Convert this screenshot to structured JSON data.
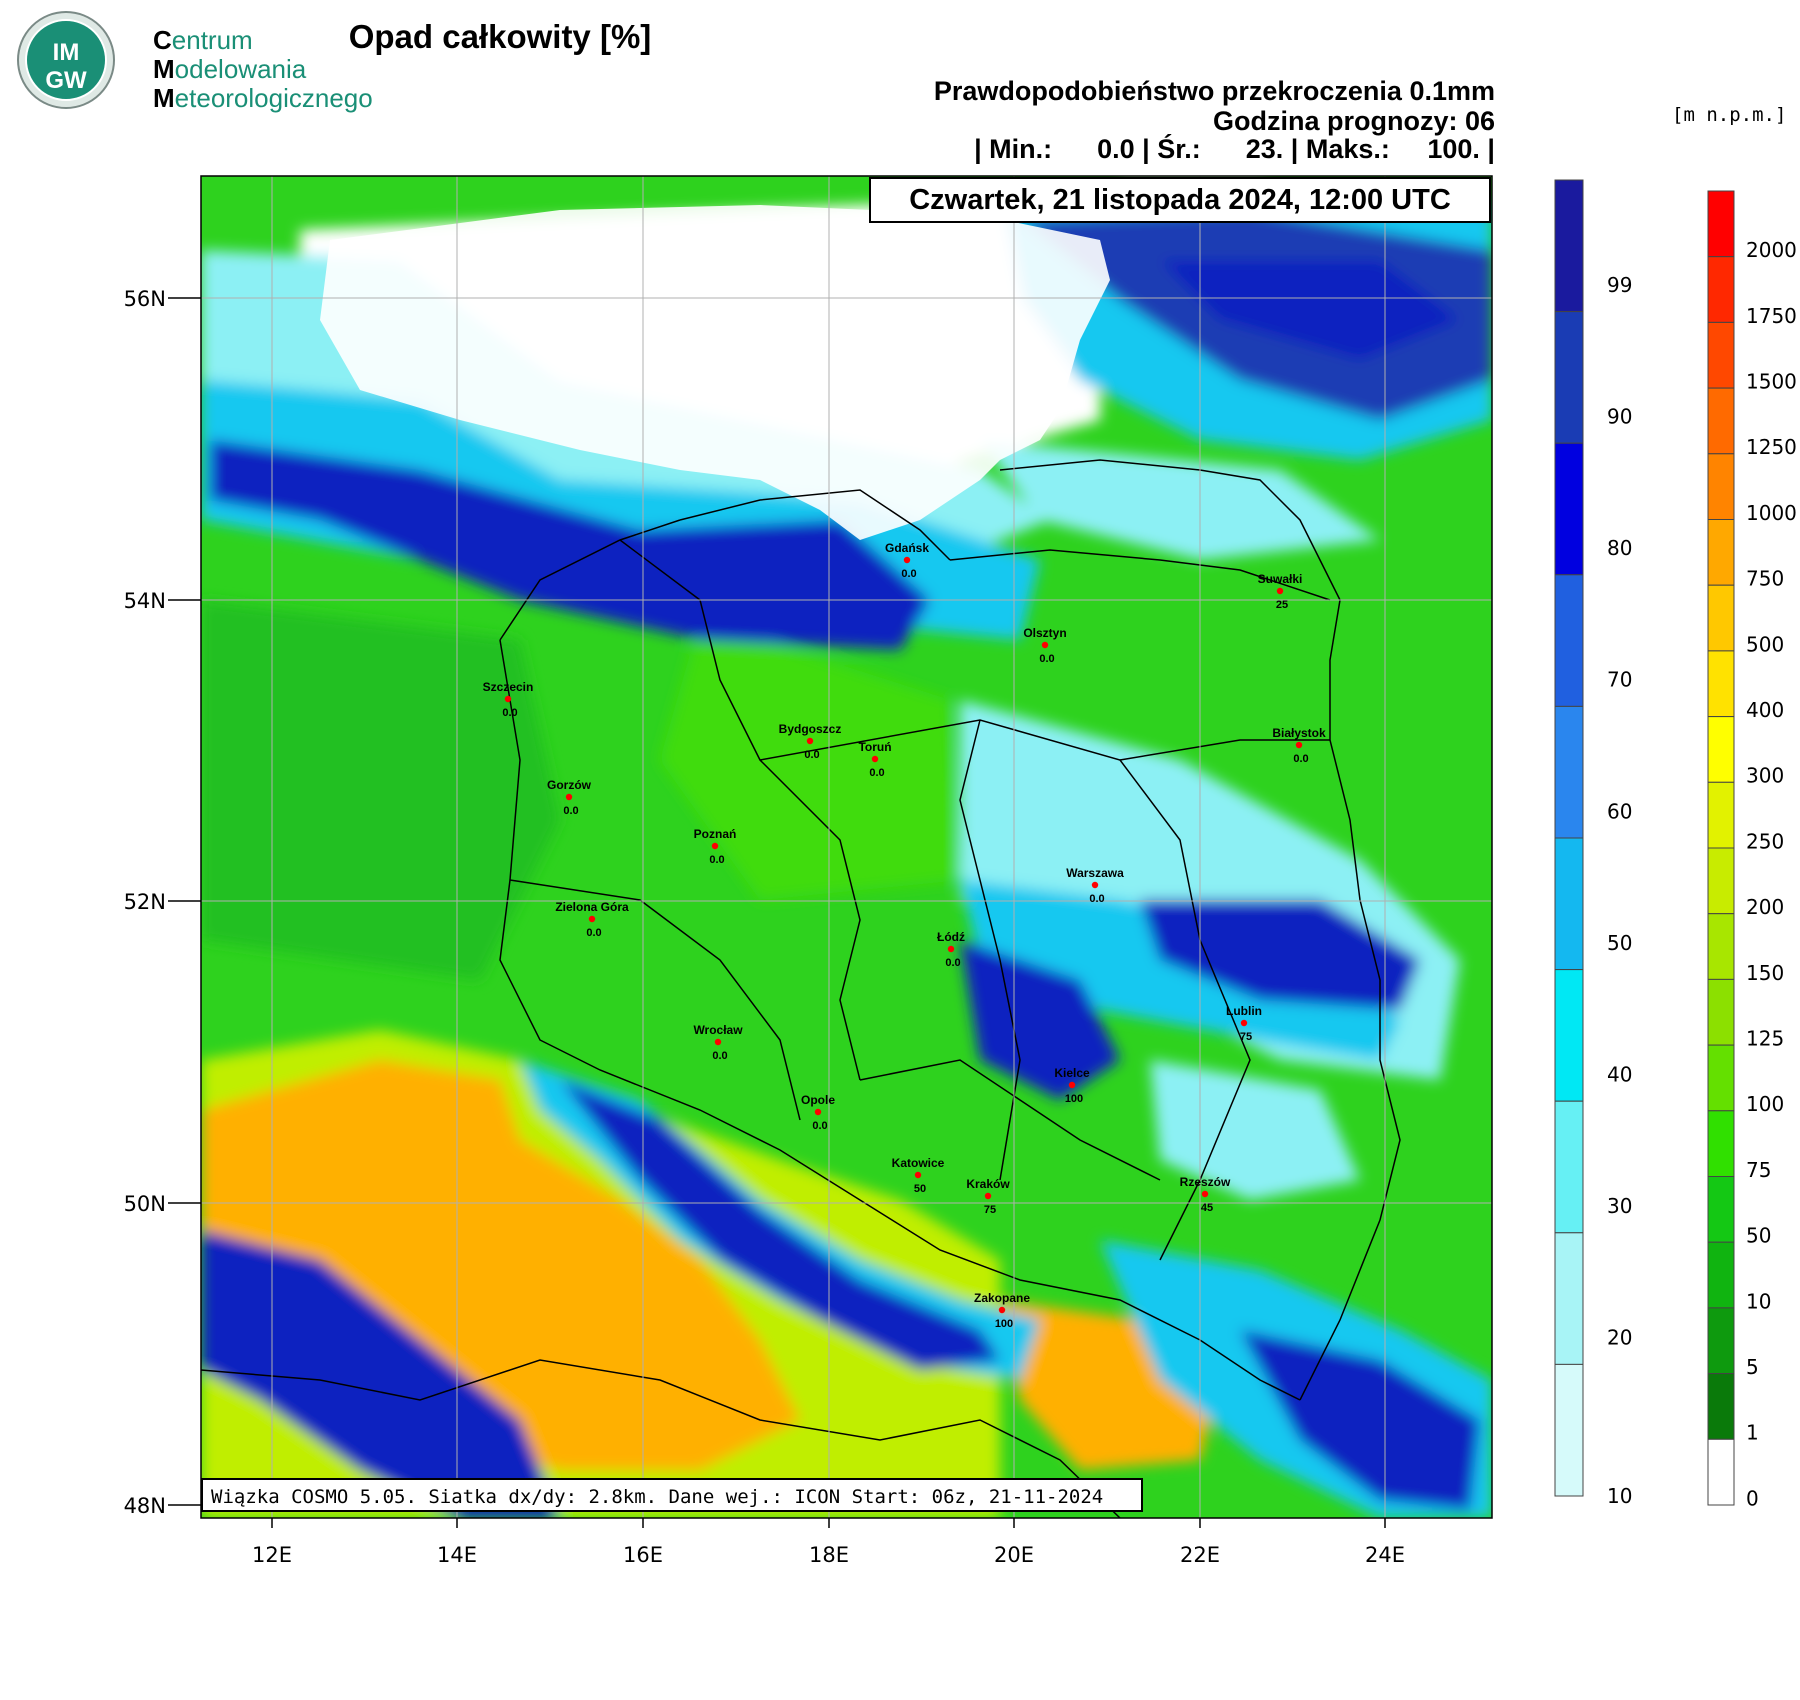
{
  "header": {
    "title": "Opad całkowity [%]",
    "subtitle1": "Prawdopodobieństwo przekroczenia 0.1mm",
    "subtitle2": "Godzina prognozy: 06",
    "stats": "| Min.:      0.0 | Śr.:      23. | Maks.:     100. |",
    "date": "Czwartek, 21 listopada 2024, 12:00 UTC",
    "unit": "[m n.p.m.]"
  },
  "logo": {
    "badge_text_top": "IM",
    "badge_text_bottom": "GW",
    "line1_first": "C",
    "line1_rest": "entrum",
    "line2_first": "M",
    "line2_rest": "odelowania",
    "line3_first": "M",
    "line3_rest": "eteorologicznego",
    "accent_color": "#1a8f76"
  },
  "footer": {
    "info": "Wiązka COSMO 5.05. Siatka dx/dy: 2.8km. Dane wej.: ICON Start: 06z, 21-11-2024"
  },
  "map": {
    "lon_ticks": [
      "12E",
      "14E",
      "16E",
      "18E",
      "20E",
      "22E",
      "24E"
    ],
    "lat_ticks": [
      "56N",
      "54N",
      "52N",
      "50N",
      "48N"
    ],
    "cities": [
      {
        "name": "Gdańsk",
        "value": "0.0"
      },
      {
        "name": "Suwałki",
        "value": "25"
      },
      {
        "name": "Olsztyn",
        "value": "0.0"
      },
      {
        "name": "Szczecin",
        "value": "0.0"
      },
      {
        "name": "Bydgoszcz",
        "value": "0.0"
      },
      {
        "name": "Toruń",
        "value": "0.0"
      },
      {
        "name": "Białystok",
        "value": "0.0"
      },
      {
        "name": "Gorzów",
        "value": "0.0"
      },
      {
        "name": "Poznań",
        "value": "0.0"
      },
      {
        "name": "Warszawa",
        "value": "0.0"
      },
      {
        "name": "Zielona Góra",
        "value": "0.0"
      },
      {
        "name": "Łódź",
        "value": "0.0"
      },
      {
        "name": "Lublin",
        "value": "75"
      },
      {
        "name": "Wrocław",
        "value": "0.0"
      },
      {
        "name": "Kielce",
        "value": "100"
      },
      {
        "name": "Opole",
        "value": "0.0"
      },
      {
        "name": "Katowice",
        "value": "50"
      },
      {
        "name": "Kraków",
        "value": "75"
      },
      {
        "name": "Rzeszów",
        "value": "45"
      },
      {
        "name": "Zakopane",
        "value": "100"
      }
    ]
  },
  "legend_probability": {
    "labels": [
      "99",
      "90",
      "80",
      "70",
      "60",
      "50",
      "40",
      "30",
      "20",
      "10"
    ],
    "colors": [
      "#1a1a9e",
      "#1a3cb4",
      "#0000e0",
      "#2060e0",
      "#2a86ee",
      "#14b8f0",
      "#00e8f4",
      "#66f0f4",
      "#a8f4f6",
      "#d6fafa"
    ]
  },
  "legend_elevation": {
    "labels": [
      "2000",
      "1750",
      "1500",
      "1250",
      "1000",
      "750",
      "500",
      "400",
      "300",
      "250",
      "200",
      "150",
      "125",
      "100",
      "75",
      "50",
      "10",
      "5",
      "1",
      "0"
    ],
    "colors": [
      "#ff0000",
      "#ff2800",
      "#ff4800",
      "#ff6a00",
      "#ff8400",
      "#ffa800",
      "#ffc800",
      "#ffe200",
      "#ffff00",
      "#e2f200",
      "#c8ec00",
      "#a8e600",
      "#8ce000",
      "#64e000",
      "#30e000",
      "#14c814",
      "#10b410",
      "#0e9a0e",
      "#0a7a0a",
      "#ffffff"
    ]
  },
  "colors": {
    "sea": "#ffffff",
    "lowland": "#2ed21e",
    "upland": "#c0ee00",
    "mountain": "#ffb000",
    "precip_light": "#8cf0f4",
    "precip_mid": "#14c8f0",
    "precip_heavy": "#1020c0"
  }
}
